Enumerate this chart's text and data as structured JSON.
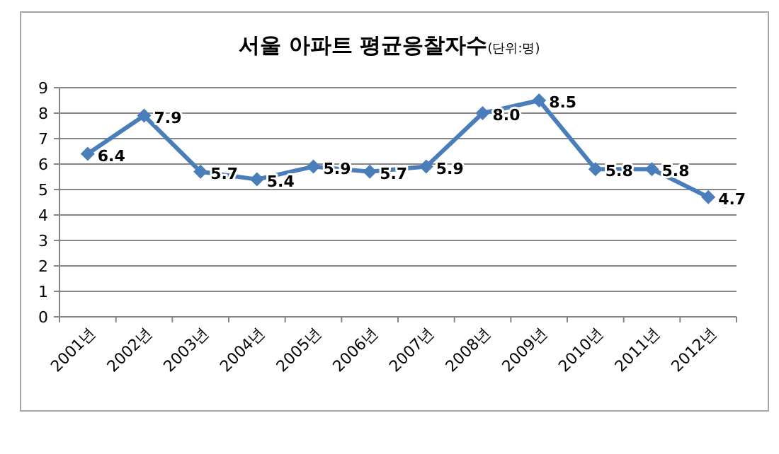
{
  "chart_data": {
    "type": "line",
    "title": "서울 아파트 평균응찰자수",
    "subtitle": "(단위:명)",
    "categories": [
      "2001년",
      "2002년",
      "2003년",
      "2004년",
      "2005년",
      "2006년",
      "2007년",
      "2008년",
      "2009년",
      "2010년",
      "2011년",
      "2012년"
    ],
    "values": [
      6.4,
      7.9,
      5.7,
      5.4,
      5.9,
      5.7,
      5.9,
      8.0,
      8.5,
      5.8,
      5.8,
      4.7
    ],
    "value_labels": [
      "6.4",
      "7.9",
      "5.7",
      "5.4",
      "5.9",
      "5.7",
      "5.9",
      "8.0",
      "8.5",
      "5.8",
      "5.8",
      "4.7"
    ],
    "color": "#4a7ebb",
    "ylim": [
      0,
      9
    ],
    "yticks": [
      0,
      1,
      2,
      3,
      4,
      5,
      6,
      7,
      8,
      9
    ],
    "grid": "y",
    "marker": "diamond",
    "line_style": "solid"
  }
}
